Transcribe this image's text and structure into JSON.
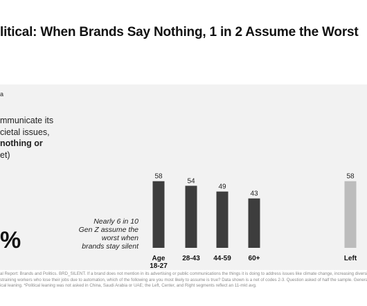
{
  "title": "litical: When Brands Say Nothing, 1 in 2 Assume the Worst",
  "footnote_mark": "a",
  "statement": {
    "line1": "mmunicate its",
    "line2": "cietal issues,",
    "line3_bold": "nothing or",
    "line4": "et)"
  },
  "big_percent": "%",
  "annotation": [
    "Nearly 6 in 10",
    "Gen Z assume the",
    "worst when",
    "brands stay silent"
  ],
  "sources": [
    "al Report: Brands and Politics. BRD_SILENT. If a brand does not mention in its advertising or public communications the things it is doing to address issues like climate change, increasing diversity a",
    "straining workers who lose their jobs due to automation, which of the following are you most likely to assume is true? Data shown is a net of codes 2-3. Question asked of half the sample. General po",
    "ical leaning. *Political leaning was not asked in China, Saudi Arabia or UAE; the Left, Center, and Right segments reflect an 11-mkt avg."
  ],
  "colors": {
    "bar_dark": "#3d3d3d",
    "bar_light": "#bcbcbc",
    "panel": "#f2f2f2"
  },
  "chart_data": {
    "type": "bar",
    "categories": [
      [
        "Age",
        "18-27"
      ],
      [
        "28-43"
      ],
      [
        "44-59"
      ],
      [
        "60+"
      ],
      [
        "Left"
      ]
    ],
    "values": [
      58,
      54,
      49,
      43,
      58
    ],
    "ylim": [
      0,
      100
    ],
    "grid": false,
    "title": "",
    "xlabel": "",
    "ylabel": ""
  }
}
